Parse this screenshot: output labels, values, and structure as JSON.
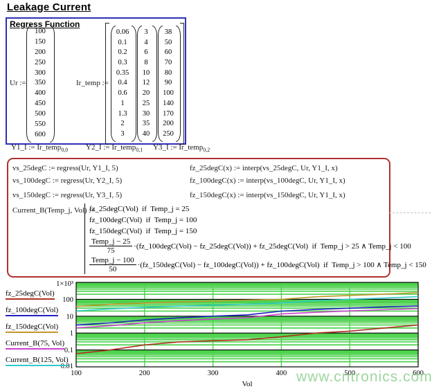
{
  "title": "Leakage Current",
  "regress_box": {
    "heading": "Regress Function",
    "ur": {
      "label": "Ur :=",
      "values": [
        "100",
        "150",
        "200",
        "250",
        "300",
        "350",
        "400",
        "450",
        "500",
        "550",
        "600"
      ]
    },
    "ir_temp": {
      "label": "Ir_temp :=",
      "columns": [
        [
          "0.06",
          "0.1",
          "0.2",
          "0.3",
          "0.35",
          "0.4",
          "0.6",
          "1",
          "1.3",
          "2",
          "3"
        ],
        [
          "3",
          "4",
          "6",
          "8",
          "10",
          "12",
          "20",
          "25",
          "30",
          "35",
          "40"
        ],
        [
          "38",
          "50",
          "60",
          "70",
          "80",
          "90",
          "100",
          "140",
          "170",
          "200",
          "250"
        ]
      ]
    },
    "assignments": [
      {
        "pre": "Y1_I := Ir_temp",
        "sub": "0,0"
      },
      {
        "pre": "Y2_I := Ir_temp",
        "sub": "0,1"
      },
      {
        "pre": "Y3_I := Ir_temp",
        "sub": "0,2"
      }
    ]
  },
  "formula_box": {
    "vs_lines": [
      "vs_25degC := regress(Ur, Y1_I, 5)",
      "vs_100degC := regress(Ur, Y2_I, 5)",
      "vs_150degC := regress(Ur, Y3_I, 5)"
    ],
    "fz_lines": [
      "fz_25degC(x) := interp(vs_25degC, Ur, Y1_I, x)",
      "fz_100degC(x) := interp(vs_100degC, Ur, Y1_I, x)",
      "fz_150degC(x) := interp(vs_150degC, Ur, Y1_I, x)"
    ],
    "current_b": {
      "lhs": "Current_B(Temp_j, Vol) :=",
      "branches": [
        "fz_25degC(Vol)  if  Temp_j = 25",
        "fz_100degC(Vol)  if  Temp_j = 100",
        "fz_150degC(Vol)  if  Temp_j = 150"
      ],
      "frac_branches": [
        {
          "num": "Temp_j − 25",
          "den": "75",
          "rest": "·(fz_100degC(Vol) − fz_25degC(Vol)) + fz_25degC(Vol)  if  Temp_j > 25 ∧ Temp_j < 100"
        },
        {
          "num": "Temp_j − 100",
          "den": "50",
          "rest": "·(fz_150degC(Vol) − fz_100degC(Vol)) + fz_100degC(Vol)  if  Temp_j > 100 ∧ Temp_j < 150"
        }
      ]
    }
  },
  "chart_data": {
    "type": "line",
    "xscale": "linear",
    "yscale": "log",
    "xlim": [
      100,
      600
    ],
    "ylim": [
      0.01,
      1000
    ],
    "xlabel": "Vol",
    "x_ticks": [
      100,
      200,
      300,
      400,
      500,
      600
    ],
    "y_ticks": [
      {
        "v": 1000,
        "label": "1×10³"
      },
      {
        "v": 100,
        "label": "100"
      },
      {
        "v": 10,
        "label": "10"
      },
      {
        "v": 1,
        "label": "1"
      },
      {
        "v": 0.1,
        "label": "0.1"
      },
      {
        "v": 0.01,
        "label": "0.01"
      }
    ],
    "grid": {
      "on": true,
      "minor_color": "#4ed24e",
      "decade_line_color": "#000000",
      "vertical_lines": [
        200,
        300,
        400,
        500
      ]
    },
    "legend_position": "left",
    "x": [
      100,
      150,
      200,
      250,
      300,
      350,
      400,
      450,
      500,
      550,
      600
    ],
    "series": [
      {
        "name": "fz_25degC(Vol)",
        "color": "#b03020",
        "values": [
          0.06,
          0.1,
          0.2,
          0.3,
          0.35,
          0.4,
          0.6,
          1,
          1.3,
          2,
          3
        ]
      },
      {
        "name": "fz_100degC(Vol)",
        "color": "#2020c0",
        "values": [
          3,
          4,
          6,
          8,
          10,
          12,
          20,
          25,
          30,
          35,
          40
        ]
      },
      {
        "name": "fz_150degC(Vol)",
        "color": "#c0982c",
        "values": [
          38,
          50,
          60,
          70,
          80,
          90,
          100,
          140,
          170,
          200,
          250
        ]
      },
      {
        "name": "Current_B(75, Vol)",
        "color": "#cc40cc",
        "values": [
          2.02,
          2.7,
          4.07,
          5.43,
          6.78,
          8.13,
          13.53,
          17,
          20.43,
          24,
          27.67
        ]
      },
      {
        "name": "Current_B(125, Vol)",
        "color": "#30c8c8",
        "values": [
          20.5,
          27,
          33,
          39,
          45,
          51,
          60,
          82.5,
          100,
          117.5,
          145
        ]
      }
    ]
  },
  "watermark": "www.cntronics.com"
}
